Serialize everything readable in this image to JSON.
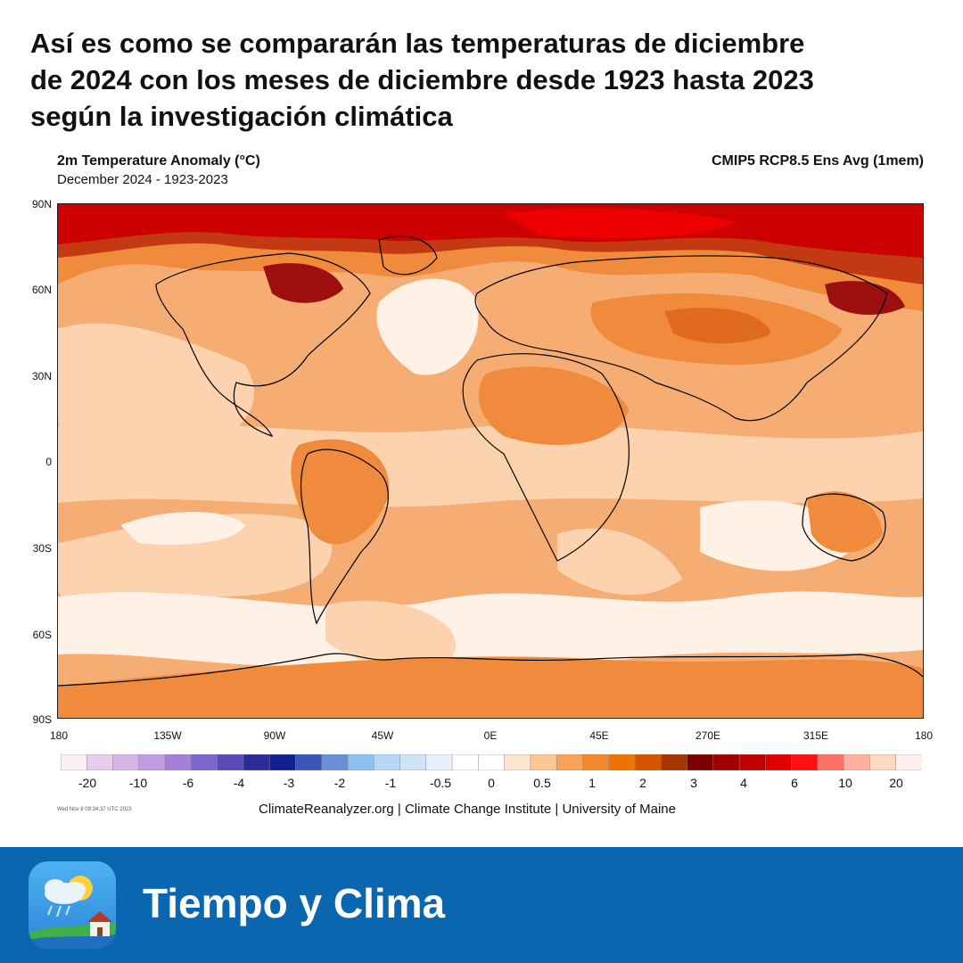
{
  "headline": {
    "line1": "Así es como se compararán las temperaturas de diciembre",
    "line2": "de 2024 con los meses de diciembre desde 1923 hasta 2023",
    "line3": "según la investigación climática"
  },
  "map": {
    "title": "2m Temperature Anomaly (°C)",
    "subtitle": "December 2024 - 1923-2023",
    "model": "CMIP5 RCP8.5 Ens Avg (1mem)",
    "lat_labels": [
      "90N",
      "60N",
      "30N",
      "0",
      "30S",
      "60S",
      "90S"
    ],
    "lon_labels": [
      "180",
      "135W",
      "90W",
      "45W",
      "0E",
      "45E",
      "270E",
      "315E",
      "180"
    ],
    "colorbar": {
      "colors": [
        "#fbeef5",
        "#e6cdeb",
        "#d6b4e6",
        "#c39be0",
        "#a57fd9",
        "#7a66cc",
        "#5a4ab8",
        "#2d2b9c",
        "#13208f",
        "#3a56b8",
        "#6a8fd6",
        "#8fc0f0",
        "#b6d8f5",
        "#cfe3f7",
        "#e6f1fb",
        "#ffffff",
        "#ffffff",
        "#fde4cf",
        "#fbc893",
        "#f7a35c",
        "#f5872e",
        "#f07200",
        "#d45400",
        "#a83400",
        "#7d0000",
        "#a00000",
        "#c00000",
        "#e00000",
        "#ff1010",
        "#ff7066",
        "#ffb0a0",
        "#ffd8bf",
        "#fff0f0"
      ],
      "labels": [
        "-20",
        "-10",
        "-6",
        "-4",
        "-3",
        "-2",
        "-1",
        "-0.5",
        "0",
        "0.5",
        "1",
        "2",
        "3",
        "4",
        "6",
        "10",
        "20"
      ]
    },
    "palette": {
      "near_zero": "#fff1e6",
      "light": "#fcd3ae",
      "medium": "#f6ad74",
      "strong": "#f08a3c",
      "darker": "#e06b1e",
      "warm_red": "#c33a12",
      "red": "#cc0000",
      "bright_red": "#ef0000",
      "dark_red": "#9b0f0f"
    },
    "timestamp": "Wed Nov 8 09:34:37 UTC 2023",
    "credit": "ClimateReanalyzer.org | Climate Change Institute | University of Maine"
  },
  "brand": {
    "name": "Tiempo y Clima",
    "icon": "weather-app-icon"
  }
}
